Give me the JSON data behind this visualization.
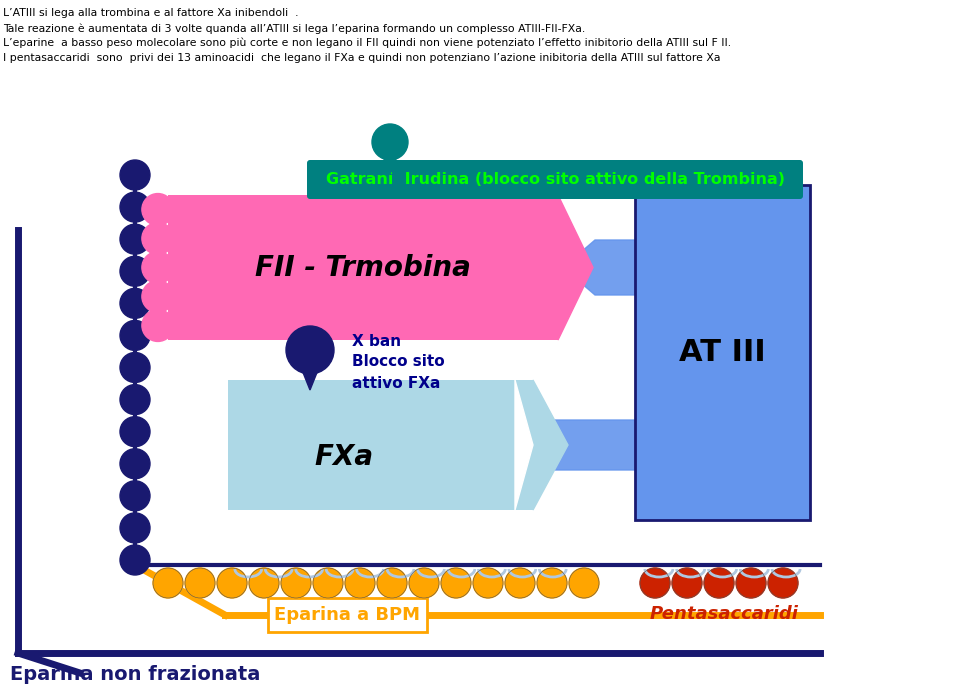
{
  "text_lines": [
    "L’ATIII si lega alla trombina e al fattore Xa inibendoli  .",
    "Tale reazione è aumentata di 3 volte quanda all’ATIII si lega l’eparina formando un complesso ATIII-FII-FXa.",
    "L’eparine  a basso peso molecolare sono più corte e non legano il FII quindi non viene potenziato l’effetto inibitorio della ATIII sul F II.",
    "I pentasaccaridi  sono  privi dei 13 aminoacidi  che legano il FXa e quindi non potenziano l’azione inibitoria della ATIII sul fattore Xa"
  ],
  "gatrani_label": "Gatrani  Irudina (blocco sito attivo della Trombina)",
  "fii_label": "FII - Trmobina",
  "atiii_label": "AT III",
  "fxa_label": "FXa",
  "xban_label": "X ban\nBlocco sito\nattivo FXa",
  "eparina_bpm_label": "Eparina a BPM",
  "eparina_non_fraz_label": "Eparina non frazionata",
  "pentasaccaridi_label": "Pentasaccaridi",
  "colors": {
    "background": "#ffffff",
    "text_black": "#000000",
    "gatrani_bg": "#008080",
    "gatrani_text": "#00ff00",
    "fii_bg": "#ff69b4",
    "fii_text": "#000000",
    "atiii_bg": "#6495ed",
    "atiii_text": "#000000",
    "fxa_bg": "#add8e6",
    "fxa_text": "#000000",
    "xban_text": "#00008b",
    "drop_pin_dark": "#191970",
    "drop_pin_teal": "#008080",
    "circles_left_color": "#191970",
    "circles_bottom_orange": "#ffa500",
    "circles_bottom_red": "#cc2200",
    "eparina_bpm_color": "#ffa500",
    "eparina_non_fraz_color": "#191970",
    "pentasaccaridi_color": "#cc2200",
    "arrow_color": "#6495ed",
    "curl_color": "#b0c8e0",
    "border_color": "#191970"
  }
}
